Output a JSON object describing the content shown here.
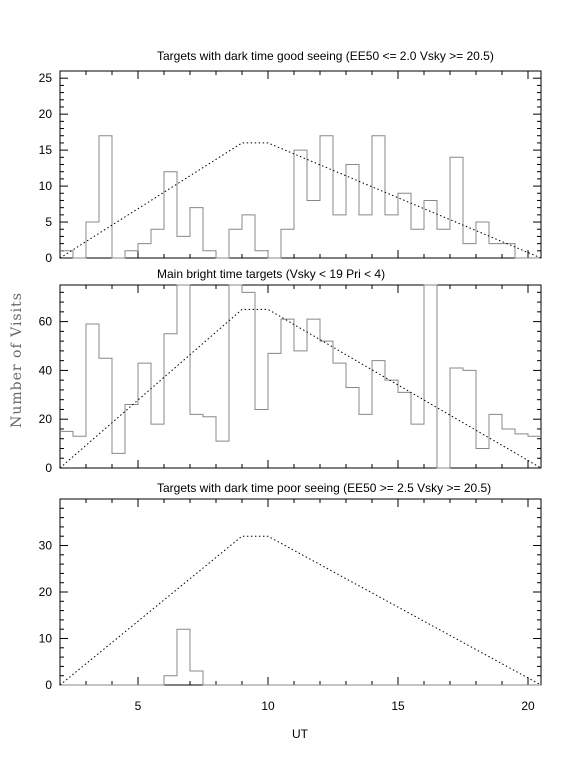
{
  "figure": {
    "ylabel": "Number of Visits",
    "xlabel": "UT"
  },
  "chart_data": [
    {
      "type": "histogram",
      "title": "Targets with dark time good seeing (EE50 <= 2.0 Vsky >= 20.5)",
      "xlim": [
        2,
        20.5
      ],
      "ylim": [
        0,
        26
      ],
      "xticks": [
        5,
        10,
        15,
        20
      ],
      "yticks": [
        0,
        5,
        10,
        15,
        20,
        25
      ],
      "bin_width": 0.5,
      "bin_start": 2,
      "values": [
        1,
        0,
        5,
        17,
        0,
        1,
        2,
        4,
        12,
        3,
        7,
        1,
        0,
        4,
        6,
        1,
        0,
        4,
        15,
        8,
        17,
        6,
        13,
        6,
        17,
        6,
        9,
        4,
        8,
        4,
        14,
        2,
        5,
        2,
        2,
        0,
        0
      ],
      "envelope": {
        "x": [
          2,
          9,
          10,
          20.5
        ],
        "y": [
          0,
          16,
          16,
          0
        ]
      }
    },
    {
      "type": "histogram",
      "title": "Main bright time targets (Vsky < 19 Pri < 4)",
      "xlim": [
        2,
        20.5
      ],
      "ylim": [
        0,
        75
      ],
      "xticks": [
        5,
        10,
        15,
        20
      ],
      "yticks": [
        0,
        20,
        40,
        60
      ],
      "bin_width": 0.5,
      "bin_start": 2,
      "values": [
        15,
        13,
        59,
        45,
        6,
        26,
        43,
        18,
        55,
        75,
        22,
        21,
        11,
        75,
        72,
        24,
        47,
        61,
        48,
        61,
        52,
        43,
        33,
        22,
        44,
        36,
        31,
        18,
        75,
        0,
        41,
        40,
        8,
        22,
        16,
        14,
        13
      ],
      "envelope": {
        "x": [
          2,
          9,
          10,
          20.5
        ],
        "y": [
          0,
          65,
          65,
          0
        ]
      }
    },
    {
      "type": "histogram",
      "title": "Targets with dark time poor seeing (EE50 >= 2.5 Vsky >= 20.5)",
      "xlim": [
        2,
        20.5
      ],
      "ylim": [
        0,
        40
      ],
      "xticks": [
        5,
        10,
        15,
        20
      ],
      "yticks": [
        0,
        10,
        20,
        30
      ],
      "bin_width": 0.5,
      "bin_start": 2,
      "values": [
        0,
        0,
        0,
        0,
        0,
        0,
        0,
        0,
        2,
        12,
        3,
        0,
        0,
        0,
        0,
        0,
        0,
        0,
        0,
        0,
        0,
        0,
        0,
        0,
        0,
        0,
        0,
        0,
        0,
        0,
        0,
        0,
        0,
        0,
        0,
        0,
        0
      ],
      "envelope": {
        "x": [
          2,
          9,
          10,
          20.5
        ],
        "y": [
          0,
          32,
          32,
          0
        ]
      }
    }
  ]
}
